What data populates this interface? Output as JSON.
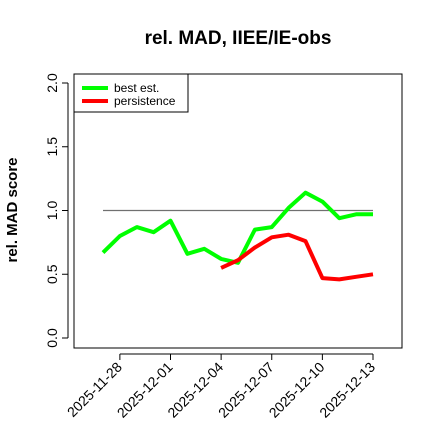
{
  "chart_data": {
    "type": "line",
    "title": "rel. MAD, IIEE/IE-obs",
    "xlabel": "",
    "ylabel": "rel. MAD score",
    "ylim": [
      0,
      2
    ],
    "y_ticks": [
      "0.0",
      "0.5",
      "1.0",
      "1.5",
      "2.0"
    ],
    "x_ticks": [
      "2025-11-28",
      "2025-12-01",
      "2025-12-04",
      "2025-12-07",
      "2025-12-10",
      "2025-12-13"
    ],
    "x_range": [
      "2025-11-27",
      "2025-12-13"
    ],
    "reference_line": 1.0,
    "legend_position": "top-left",
    "grid": false,
    "series": [
      {
        "name": "best est.",
        "color": "#00ff00",
        "x": [
          "2025-11-27",
          "2025-11-28",
          "2025-11-29",
          "2025-11-30",
          "2025-12-01",
          "2025-12-02",
          "2025-12-03",
          "2025-12-04",
          "2025-12-05",
          "2025-12-06",
          "2025-12-07",
          "2025-12-08",
          "2025-12-09",
          "2025-12-10",
          "2025-12-11",
          "2025-12-12",
          "2025-12-13"
        ],
        "values": [
          0.67,
          0.8,
          0.87,
          0.83,
          0.92,
          0.66,
          0.7,
          0.62,
          0.59,
          0.85,
          0.87,
          1.02,
          1.14,
          1.07,
          0.94,
          0.97,
          0.97
        ]
      },
      {
        "name": "persistence",
        "color": "#ff0000",
        "x": [
          "2025-12-04",
          "2025-12-05",
          "2025-12-06",
          "2025-12-07",
          "2025-12-08",
          "2025-12-09",
          "2025-12-10",
          "2025-12-11",
          "2025-12-12",
          "2025-12-13"
        ],
        "values": [
          0.55,
          0.61,
          0.71,
          0.79,
          0.81,
          0.76,
          0.47,
          0.46,
          0.48,
          0.5
        ]
      }
    ],
    "reference_color": "#707070"
  }
}
